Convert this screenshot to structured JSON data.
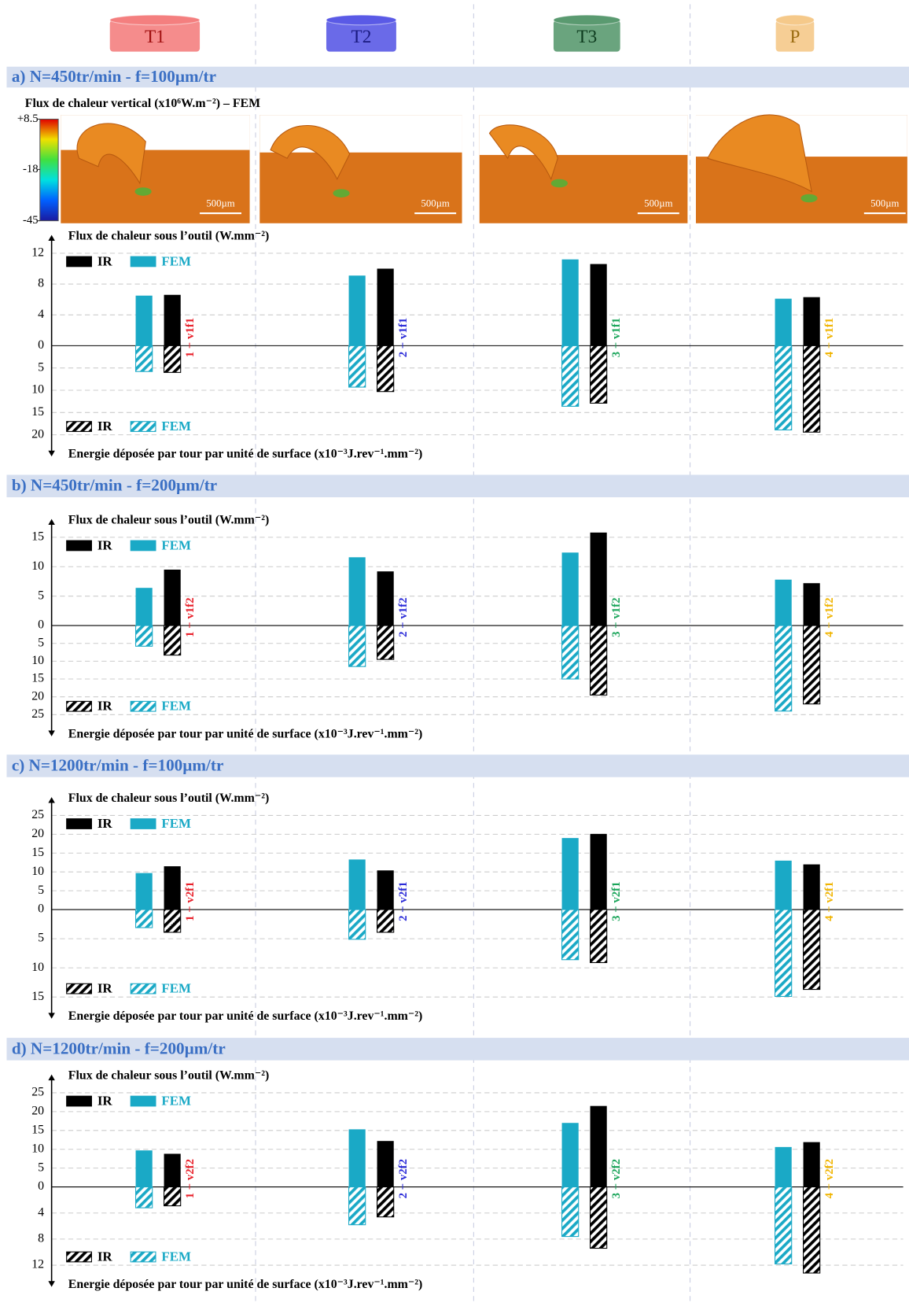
{
  "header": {
    "tools": [
      "T1",
      "T2",
      "T3",
      "P"
    ],
    "tool_colors": [
      "#f47f7f",
      "#5a5ae6",
      "#5a9a70",
      "#f5c98a"
    ],
    "tool_text_colors": [
      "#a01010",
      "#1a1a80",
      "#0d3b1e",
      "#9a6b10"
    ]
  },
  "fem_images": {
    "title": "Flux de chaleur vertical (x10⁶W.m⁻²) – FEM",
    "colorbar_ticks": [
      {
        "value": 8.5,
        "label": "+8.5"
      },
      -18,
      -45
    ],
    "colorbar_lim": [
      -45,
      8.5
    ],
    "scale_labels": [
      "500µm",
      "500µm",
      "500µm",
      "500µm"
    ]
  },
  "chart_data": [
    {
      "type": "bar",
      "title": "a) N=450tr/min - f=100µm/tr",
      "ylabel": "Flux de chaleur sous l’outil (W.mm⁻²)",
      "categories": [
        "1 − v1f1",
        "2 − v1f1",
        "3 − v1f1",
        "4 − v1f1"
      ],
      "category_colors": [
        "#e8202a",
        "#2b2bd8",
        "#1aa55a",
        "#f0b400"
      ],
      "ylim": [
        0,
        12
      ],
      "yticks": [
        0,
        4,
        8,
        12
      ],
      "grid": true,
      "series": [
        {
          "name": "IR",
          "color": "#000000",
          "values": [
            6.6,
            10,
            10.6,
            6.3
          ]
        },
        {
          "name": "FEM",
          "color": "#1aa9c6",
          "values": [
            6.5,
            9.1,
            11.2,
            6.1
          ]
        }
      ]
    },
    {
      "type": "bar",
      "direction": "down",
      "hatch": true,
      "ylabel": "Energie déposée par tour par unité de surface (x10⁻³J.rev⁻¹.mm⁻²)",
      "categories": [
        null,
        null,
        null,
        null
      ],
      "ylim": [
        0,
        20
      ],
      "yticks": [
        5,
        10,
        15,
        20
      ],
      "grid": true,
      "series": [
        {
          "name": "IR",
          "color": "#000000",
          "values": [
            6,
            10.3,
            12.9,
            19.4
          ]
        },
        {
          "name": "FEM",
          "color": "#1aa9c6",
          "values": [
            5.8,
            9.3,
            13.6,
            18.9
          ]
        }
      ]
    },
    {
      "type": "bar",
      "title": "b) N=450tr/min - f=200µm/tr",
      "ylabel": "Flux de chaleur sous l’outil (W.mm⁻²)",
      "categories": [
        "1 − v1f2",
        "2 − v1f2",
        "3 − v1f2",
        "4 − v1f2"
      ],
      "category_colors": [
        "#e8202a",
        "#2b2bd8",
        "#1aa55a",
        "#f0b400"
      ],
      "ylim": [
        0,
        15
      ],
      "yticks": [
        0,
        5,
        10,
        15
      ],
      "grid": true,
      "series": [
        {
          "name": "IR",
          "color": "#000000",
          "values": [
            9.5,
            9.2,
            15.8,
            7.2
          ]
        },
        {
          "name": "FEM",
          "color": "#1aa9c6",
          "values": [
            6.4,
            11.6,
            12.4,
            7.8
          ]
        }
      ]
    },
    {
      "type": "bar",
      "direction": "down",
      "hatch": true,
      "ylabel": "Energie déposée par tour par unité de surface (x10⁻³J.rev⁻¹.mm⁻²)",
      "categories": [
        null,
        null,
        null,
        null
      ],
      "ylim": [
        0,
        25
      ],
      "yticks": [
        5,
        10,
        15,
        20,
        25
      ],
      "grid": true,
      "series": [
        {
          "name": "IR",
          "color": "#000000",
          "values": [
            8.3,
            9.5,
            19.5,
            22
          ]
        },
        {
          "name": "FEM",
          "color": "#1aa9c6",
          "values": [
            5.8,
            11.5,
            15,
            24
          ]
        }
      ]
    },
    {
      "type": "bar",
      "title": "c) N=1200tr/min - f=100µm/tr",
      "ylabel": "Flux de chaleur sous l’outil (W.mm⁻²)",
      "categories": [
        "1 − v2f1",
        "2 − v2f1",
        "3 − v2f1",
        "4 − v2f1"
      ],
      "category_colors": [
        "#e8202a",
        "#2b2bd8",
        "#1aa55a",
        "#f0b400"
      ],
      "ylim": [
        0,
        25
      ],
      "yticks": [
        0,
        5,
        10,
        15,
        20,
        25
      ],
      "grid": true,
      "series": [
        {
          "name": "IR",
          "color": "#000000",
          "values": [
            11.5,
            10.4,
            20.1,
            12
          ]
        },
        {
          "name": "FEM",
          "color": "#1aa9c6",
          "values": [
            9.7,
            13.3,
            19,
            13
          ]
        }
      ]
    },
    {
      "type": "bar",
      "direction": "down",
      "hatch": true,
      "ylabel": "Energie déposée par tour par unité de surface (x10⁻³J.rev⁻¹.mm⁻²)",
      "categories": [
        null,
        null,
        null,
        null
      ],
      "ylim": [
        0,
        15
      ],
      "yticks": [
        5,
        10,
        15
      ],
      "grid": true,
      "series": [
        {
          "name": "IR",
          "color": "#000000",
          "values": [
            3.9,
            3.9,
            9.1,
            13.7
          ]
        },
        {
          "name": "FEM",
          "color": "#1aa9c6",
          "values": [
            3.1,
            5.1,
            8.6,
            14.9
          ]
        }
      ]
    },
    {
      "type": "bar",
      "title": "d) N=1200tr/min - f=200µm/tr",
      "ylabel": "Flux de chaleur sous l’outil (W.mm⁻²)",
      "categories": [
        "1 − v2f2",
        "2 − v2f2",
        "3 − v2f2",
        "4 − v2f2"
      ],
      "category_colors": [
        "#e8202a",
        "#2b2bd8",
        "#1aa55a",
        "#f0b400"
      ],
      "ylim": [
        0,
        25
      ],
      "yticks": [
        0,
        5,
        10,
        15,
        20,
        25
      ],
      "grid": true,
      "series": [
        {
          "name": "IR",
          "color": "#000000",
          "values": [
            8.8,
            12.2,
            21.5,
            11.9
          ]
        },
        {
          "name": "FEM",
          "color": "#1aa9c6",
          "values": [
            9.7,
            15.3,
            17,
            10.6
          ]
        }
      ]
    },
    {
      "type": "bar",
      "direction": "down",
      "hatch": true,
      "ylabel": "Energie déposée par tour par unité de surface (x10⁻³J.rev⁻¹.mm⁻²)",
      "categories": [
        null,
        null,
        null,
        null
      ],
      "ylim": [
        0,
        12
      ],
      "yticks": [
        4,
        8,
        12
      ],
      "grid": true,
      "series": [
        {
          "name": "IR",
          "color": "#000000",
          "values": [
            2.9,
            4.6,
            9.4,
            13.2
          ]
        },
        {
          "name": "FEM",
          "color": "#1aa9c6",
          "values": [
            3.2,
            5.8,
            7.6,
            11.8
          ]
        }
      ]
    }
  ]
}
